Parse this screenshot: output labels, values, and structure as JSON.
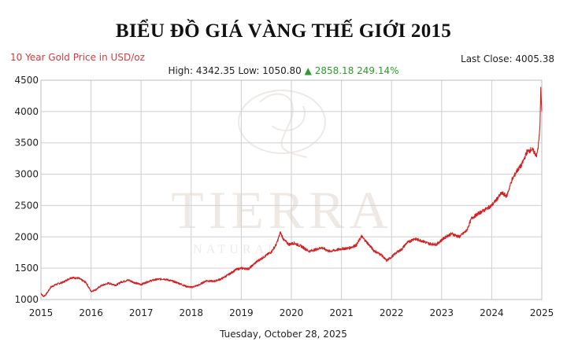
{
  "title": "BIỂU ĐỒ GIÁ VÀNG THẾ GIỚI 2015",
  "subtitle": "10 Year Gold Price in USD/oz",
  "last_close": "Last Close: 4005.38",
  "stats": {
    "high_label": "High: 4342.35",
    "low_label": "Low: 1050.80",
    "arrow": "▲",
    "change": "2858.18 249.14%"
  },
  "date_footer": "Tuesday, October 28, 2025",
  "watermark": {
    "brand": "TIERRA",
    "tagline": "NATURAL"
  },
  "colors": {
    "line": "#d42020",
    "subtitle": "#d13b3b",
    "up": "#2e9b2e",
    "grid": "#cfcfcf"
  },
  "chart_data": {
    "type": "line",
    "title": "BIỂU ĐỒ GIÁ VÀNG THẾ GIỚI 2015",
    "subtitle": "10 Year Gold Price in USD/oz",
    "xlabel": "",
    "ylabel": "",
    "xlim": [
      2015,
      2025
    ],
    "ylim": [
      1000,
      4500
    ],
    "x_ticks": [
      "2015",
      "2016",
      "2017",
      "2018",
      "2019",
      "2020",
      "2021",
      "2022",
      "2023",
      "2024",
      "2025"
    ],
    "y_ticks": [
      "1000",
      "1500",
      "2000",
      "2500",
      "3000",
      "3500",
      "4000",
      "4500"
    ],
    "grid": true,
    "series": [
      {
        "x": [
          2015.0,
          2015.05,
          2015.1,
          2015.2,
          2015.3,
          2015.45,
          2015.6,
          2015.75,
          2015.9,
          2016.0,
          2016.1,
          2016.2,
          2016.35,
          2016.5,
          2016.6,
          2016.75,
          2016.9,
          2017.0,
          2017.15,
          2017.3,
          2017.45,
          2017.6,
          2017.75,
          2017.9,
          2018.0,
          2018.15,
          2018.3,
          2018.45,
          2018.6,
          2018.75,
          2018.9,
          2019.0,
          2019.15,
          2019.3,
          2019.45,
          2019.6,
          2019.7,
          2019.78,
          2019.85,
          2019.95,
          2020.05,
          2020.2,
          2020.35,
          2020.5,
          2020.6,
          2020.75,
          2020.9,
          2021.0,
          2021.15,
          2021.3,
          2021.4,
          2021.5,
          2021.65,
          2021.8,
          2021.9,
          2022.0,
          2022.1,
          2022.2,
          2022.3,
          2022.45,
          2022.6,
          2022.75,
          2022.9,
          2023.0,
          2023.1,
          2023.2,
          2023.35,
          2023.5,
          2023.6,
          2023.75,
          2023.9,
          2024.0,
          2024.1,
          2024.2,
          2024.3,
          2024.4,
          2024.5,
          2024.6,
          2024.7,
          2024.8,
          2024.9,
          2024.93,
          2024.96,
          2024.98,
          2025.0
        ],
        "y": [
          1100,
          1050,
          1080,
          1200,
          1240,
          1280,
          1350,
          1340,
          1270,
          1130,
          1160,
          1220,
          1260,
          1230,
          1280,
          1310,
          1260,
          1240,
          1290,
          1320,
          1330,
          1300,
          1260,
          1210,
          1195,
          1230,
          1300,
          1290,
          1330,
          1400,
          1480,
          1500,
          1490,
          1600,
          1680,
          1760,
          1880,
          2070,
          1950,
          1880,
          1900,
          1850,
          1770,
          1800,
          1830,
          1770,
          1790,
          1810,
          1820,
          1870,
          2010,
          1920,
          1780,
          1710,
          1620,
          1680,
          1750,
          1800,
          1900,
          1970,
          1940,
          1890,
          1880,
          1950,
          2010,
          2050,
          2000,
          2100,
          2300,
          2380,
          2450,
          2500,
          2600,
          2700,
          2650,
          2900,
          3050,
          3150,
          3350,
          3400,
          3300,
          3450,
          3700,
          4342,
          4005
        ]
      }
    ]
  }
}
